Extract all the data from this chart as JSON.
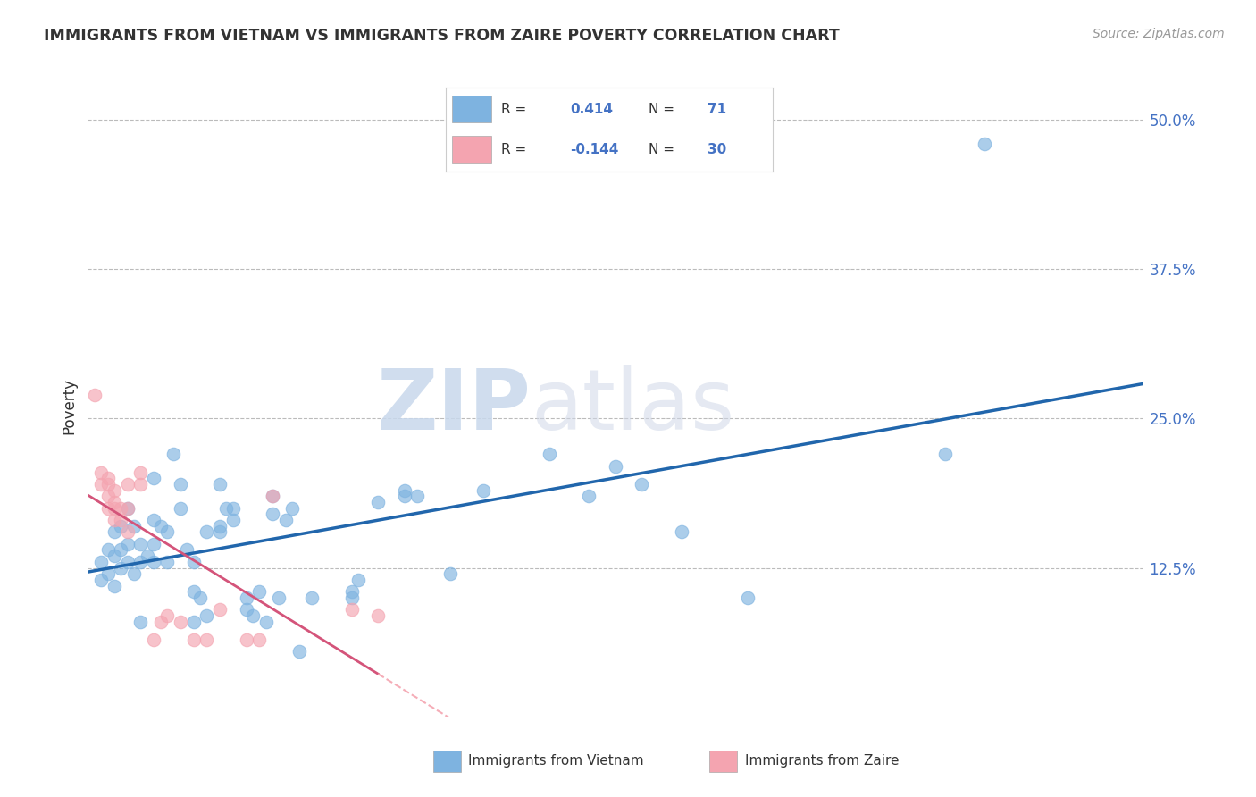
{
  "title": "IMMIGRANTS FROM VIETNAM VS IMMIGRANTS FROM ZAIRE POVERTY CORRELATION CHART",
  "source": "Source: ZipAtlas.com",
  "ylabel": "Poverty",
  "xlim": [
    0.0,
    0.8
  ],
  "ylim": [
    0.0,
    0.52
  ],
  "ytick_vals": [
    0.0,
    0.125,
    0.25,
    0.375,
    0.5
  ],
  "ytick_labels": [
    "",
    "12.5%",
    "25.0%",
    "37.5%",
    "50.0%"
  ],
  "xtick_vals": [
    0.0,
    0.1,
    0.2,
    0.3,
    0.4,
    0.5,
    0.6,
    0.7,
    0.8
  ],
  "vietnam_color": "#7EB3E0",
  "zaire_color": "#F4A4B0",
  "vietnam_line_color": "#2166AC",
  "zaire_line_color": "#D4547A",
  "zaire_dash_color": "#F4A4B0",
  "vietnam_R": "0.414",
  "vietnam_N": "71",
  "zaire_R": "-0.144",
  "zaire_N": "30",
  "legend_label_vietnam": "Immigrants from Vietnam",
  "legend_label_zaire": "Immigrants from Zaire",
  "watermark_zip": "ZIP",
  "watermark_atlas": "atlas",
  "r_text_color": "#4472C4",
  "dark_text": "#333333",
  "axis_label_color": "#4472C4",
  "grid_color": "#BBBBBB",
  "vietnam_scatter": [
    [
      0.01,
      0.115
    ],
    [
      0.01,
      0.13
    ],
    [
      0.015,
      0.12
    ],
    [
      0.015,
      0.14
    ],
    [
      0.02,
      0.11
    ],
    [
      0.02,
      0.135
    ],
    [
      0.02,
      0.155
    ],
    [
      0.025,
      0.125
    ],
    [
      0.025,
      0.14
    ],
    [
      0.025,
      0.16
    ],
    [
      0.03,
      0.13
    ],
    [
      0.03,
      0.145
    ],
    [
      0.03,
      0.175
    ],
    [
      0.035,
      0.12
    ],
    [
      0.035,
      0.16
    ],
    [
      0.04,
      0.13
    ],
    [
      0.04,
      0.145
    ],
    [
      0.04,
      0.08
    ],
    [
      0.045,
      0.135
    ],
    [
      0.05,
      0.13
    ],
    [
      0.05,
      0.145
    ],
    [
      0.05,
      0.165
    ],
    [
      0.05,
      0.2
    ],
    [
      0.055,
      0.16
    ],
    [
      0.06,
      0.13
    ],
    [
      0.06,
      0.155
    ],
    [
      0.065,
      0.22
    ],
    [
      0.07,
      0.175
    ],
    [
      0.07,
      0.195
    ],
    [
      0.075,
      0.14
    ],
    [
      0.08,
      0.08
    ],
    [
      0.08,
      0.105
    ],
    [
      0.08,
      0.13
    ],
    [
      0.085,
      0.1
    ],
    [
      0.09,
      0.085
    ],
    [
      0.09,
      0.155
    ],
    [
      0.1,
      0.16
    ],
    [
      0.1,
      0.195
    ],
    [
      0.1,
      0.155
    ],
    [
      0.105,
      0.175
    ],
    [
      0.11,
      0.165
    ],
    [
      0.11,
      0.175
    ],
    [
      0.12,
      0.09
    ],
    [
      0.12,
      0.1
    ],
    [
      0.125,
      0.085
    ],
    [
      0.13,
      0.105
    ],
    [
      0.135,
      0.08
    ],
    [
      0.14,
      0.17
    ],
    [
      0.14,
      0.185
    ],
    [
      0.145,
      0.1
    ],
    [
      0.15,
      0.165
    ],
    [
      0.155,
      0.175
    ],
    [
      0.16,
      0.055
    ],
    [
      0.17,
      0.1
    ],
    [
      0.2,
      0.1
    ],
    [
      0.2,
      0.105
    ],
    [
      0.205,
      0.115
    ],
    [
      0.22,
      0.18
    ],
    [
      0.24,
      0.185
    ],
    [
      0.24,
      0.19
    ],
    [
      0.25,
      0.185
    ],
    [
      0.275,
      0.12
    ],
    [
      0.3,
      0.19
    ],
    [
      0.35,
      0.22
    ],
    [
      0.38,
      0.185
    ],
    [
      0.4,
      0.21
    ],
    [
      0.42,
      0.195
    ],
    [
      0.45,
      0.155
    ],
    [
      0.5,
      0.1
    ],
    [
      0.65,
      0.22
    ],
    [
      0.68,
      0.48
    ]
  ],
  "zaire_scatter": [
    [
      0.005,
      0.27
    ],
    [
      0.01,
      0.195
    ],
    [
      0.01,
      0.205
    ],
    [
      0.015,
      0.175
    ],
    [
      0.015,
      0.185
    ],
    [
      0.015,
      0.195
    ],
    [
      0.015,
      0.2
    ],
    [
      0.02,
      0.165
    ],
    [
      0.02,
      0.175
    ],
    [
      0.02,
      0.18
    ],
    [
      0.02,
      0.19
    ],
    [
      0.025,
      0.165
    ],
    [
      0.025,
      0.175
    ],
    [
      0.03,
      0.155
    ],
    [
      0.03,
      0.175
    ],
    [
      0.03,
      0.195
    ],
    [
      0.04,
      0.195
    ],
    [
      0.04,
      0.205
    ],
    [
      0.05,
      0.065
    ],
    [
      0.055,
      0.08
    ],
    [
      0.06,
      0.085
    ],
    [
      0.07,
      0.08
    ],
    [
      0.08,
      0.065
    ],
    [
      0.09,
      0.065
    ],
    [
      0.1,
      0.09
    ],
    [
      0.12,
      0.065
    ],
    [
      0.13,
      0.065
    ],
    [
      0.14,
      0.185
    ],
    [
      0.2,
      0.09
    ],
    [
      0.22,
      0.085
    ]
  ]
}
